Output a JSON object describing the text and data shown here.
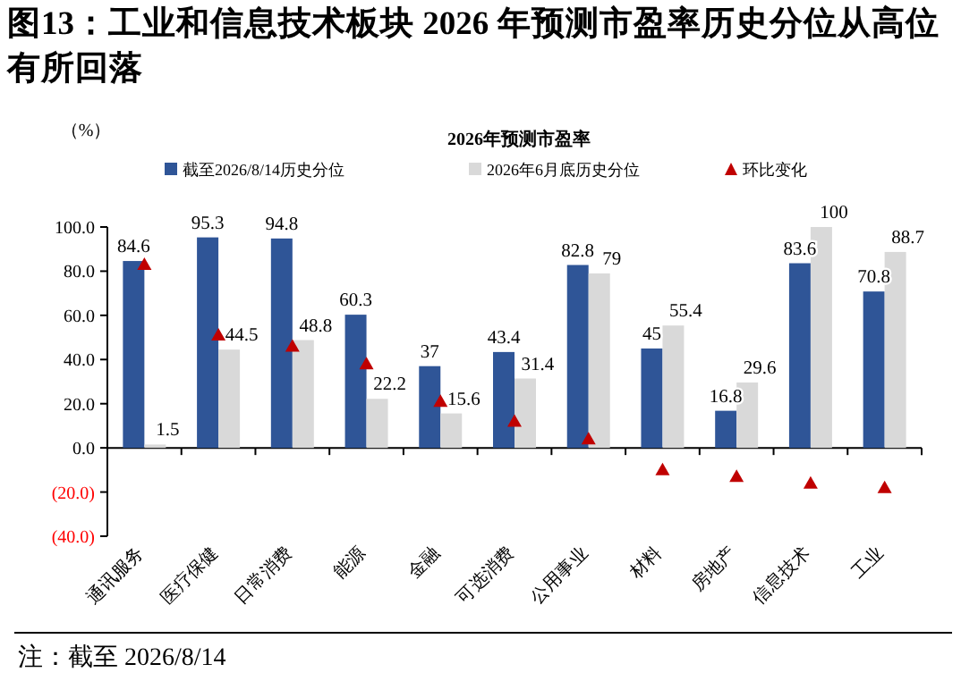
{
  "chart_data": {
    "type": "bar",
    "title": "图13：工业和信息技术板块 2026 年预测市盈率历史分位从高位有所回落",
    "subtitle": "2026年预测市盈率",
    "ylabel": "（%）",
    "categories": [
      "通讯服务",
      "医疗保健",
      "日常消费",
      "能源",
      "金融",
      "可选消费",
      "公用事业",
      "材料",
      "房地产",
      "信息技术",
      "工业"
    ],
    "series": [
      {
        "name": "截至2026/8/14历史分位",
        "color": "#2f5597",
        "values": [
          84.6,
          95.3,
          94.8,
          60.3,
          37,
          43.4,
          82.8,
          45,
          16.8,
          83.6,
          70.8
        ],
        "value_labels": [
          "84.6",
          "95.3",
          "94.8",
          "60.3",
          "37",
          "43.4",
          "82.8",
          "45",
          "16.8",
          "83.6",
          "70.8"
        ]
      },
      {
        "name": "2026年6月底历史分位",
        "color": "#d9d9d9",
        "values": [
          1.5,
          44.5,
          48.8,
          22.2,
          15.6,
          31.4,
          79,
          55.4,
          29.6,
          100,
          88.7
        ],
        "value_labels": [
          "1.5",
          "44.5",
          "48.8",
          "22.2",
          "15.6",
          "31.4",
          "79",
          "55.4",
          "29.6",
          "100",
          "88.7"
        ]
      },
      {
        "name": "环比变化",
        "type": "scatter",
        "marker": "triangle",
        "color": "#c00000",
        "values": [
          83,
          51,
          46,
          38,
          21,
          12,
          4,
          -10,
          -13,
          -16,
          -18
        ]
      }
    ],
    "ylim": [
      -40,
      100
    ],
    "yticks": [
      {
        "value": 100,
        "label": "100.0"
      },
      {
        "value": 80,
        "label": "80.0"
      },
      {
        "value": 60,
        "label": "60.0"
      },
      {
        "value": 40,
        "label": "40.0"
      },
      {
        "value": 20,
        "label": "20.0"
      },
      {
        "value": 0,
        "label": "0.0"
      },
      {
        "value": -20,
        "label": "(20.0)"
      },
      {
        "value": -40,
        "label": "(40.0)"
      }
    ],
    "legend": "top",
    "annotations": [
      "注：截至 2026/8/14"
    ]
  }
}
